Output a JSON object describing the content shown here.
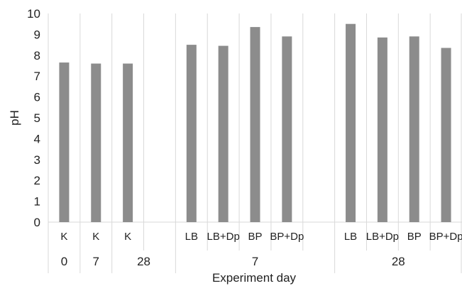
{
  "chart_data": {
    "type": "bar",
    "title": "",
    "xlabel": "Experiment day",
    "ylabel": "pH",
    "ylim": [
      0,
      10
    ],
    "y_ticks": [
      0,
      1,
      2,
      3,
      4,
      5,
      6,
      7,
      8,
      9,
      10
    ],
    "grid": "vertical category separators only",
    "legend": "none",
    "bar_color": "#8c8c8c",
    "categories": [
      "K",
      "K",
      "K",
      "",
      "LB",
      "LB+Dp",
      "BP",
      "BP+Dp",
      "",
      "LB",
      "LB+Dp",
      "BP",
      "BP+Dp"
    ],
    "values": [
      7.65,
      7.6,
      7.6,
      null,
      8.5,
      8.45,
      9.35,
      8.9,
      null,
      9.5,
      8.85,
      8.9,
      8.35
    ],
    "groups": [
      {
        "label": "0",
        "start": 0,
        "end": 0
      },
      {
        "label": "7",
        "start": 1,
        "end": 1
      },
      {
        "label": "28",
        "start": 2,
        "end": 3
      },
      {
        "label": "7",
        "start": 4,
        "end": 8
      },
      {
        "label": "28",
        "start": 9,
        "end": 12
      }
    ]
  }
}
